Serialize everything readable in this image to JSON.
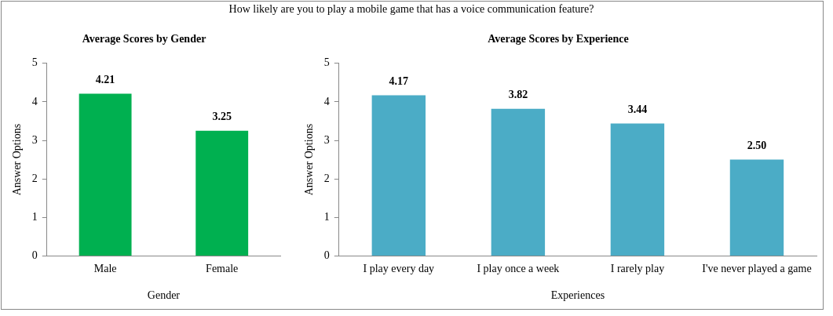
{
  "chart_data": [
    {
      "type": "bar",
      "title": "Average Scores by Gender",
      "annotations": [
        "How likely are you to play a mobile game that has a voice communication feature?"
      ],
      "categories": [
        "Male",
        "Female"
      ],
      "values": [
        4.21,
        3.25
      ],
      "color": "#00b050",
      "value_labels": [
        "4.21",
        "3.25"
      ],
      "xlabel": "Gender",
      "ylabel": "Answer Options",
      "ylim": [
        0,
        5
      ],
      "yticks": [
        0,
        1,
        2,
        3,
        4,
        5
      ],
      "grid": false,
      "legend": false
    },
    {
      "type": "bar",
      "title": "Average Scores by Experience",
      "categories": [
        "I play every day",
        "I play once a week",
        "I rarely play",
        "I've never played a game"
      ],
      "values": [
        4.17,
        3.82,
        3.44,
        2.5
      ],
      "color": "#4bacc6",
      "value_labels": [
        "4.17",
        "3.82",
        "3.44",
        "2.50"
      ],
      "xlabel": "Experiences",
      "ylabel": "Answer Options",
      "ylim": [
        0,
        5
      ],
      "yticks": [
        0,
        1,
        2,
        3,
        4,
        5
      ],
      "grid": false,
      "legend": false
    }
  ]
}
